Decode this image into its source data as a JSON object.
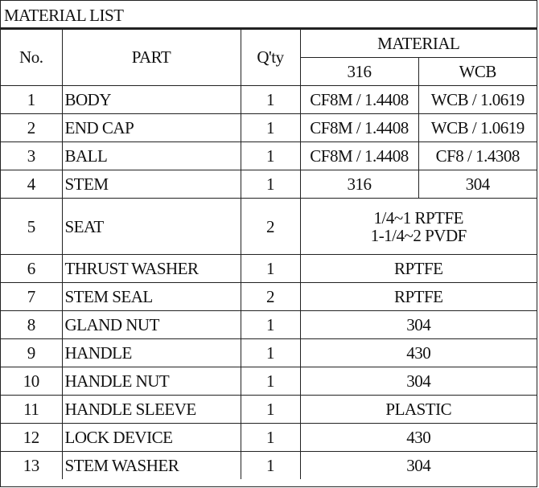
{
  "title": "MATERIAL LIST",
  "headers": {
    "no": "No.",
    "part": "PART",
    "qty": "Q'ty",
    "material": "MATERIAL",
    "m316": "316",
    "wcb": "WCB"
  },
  "rows": [
    {
      "no": "1",
      "part": "BODY",
      "qty": "1",
      "m316": "CF8M / 1.4408",
      "wcb": "WCB / 1.0619"
    },
    {
      "no": "2",
      "part": "END CAP",
      "qty": "1",
      "m316": "CF8M / 1.4408",
      "wcb": "WCB / 1.0619"
    },
    {
      "no": "3",
      "part": "BALL",
      "qty": "1",
      "m316": "CF8M / 1.4408",
      "wcb": "CF8 / 1.4308"
    },
    {
      "no": "4",
      "part": "STEM",
      "qty": "1",
      "m316": "316",
      "wcb": "304"
    },
    {
      "no": "5",
      "part": "SEAT",
      "qty": "2",
      "material_line1": "1/4~1 RPTFE",
      "material_line2": "1-1/4~2 PVDF"
    },
    {
      "no": "6",
      "part": "THRUST WASHER",
      "qty": "1",
      "material": "RPTFE"
    },
    {
      "no": "7",
      "part": "STEM SEAL",
      "qty": "2",
      "material": "RPTFE"
    },
    {
      "no": "8",
      "part": "GLAND NUT",
      "qty": "1",
      "material": "304"
    },
    {
      "no": "9",
      "part": "HANDLE",
      "qty": "1",
      "material": "430"
    },
    {
      "no": "10",
      "part": "HANDLE NUT",
      "qty": "1",
      "material": "304"
    },
    {
      "no": "11",
      "part": "HANDLE SLEEVE",
      "qty": "1",
      "material": "PLASTIC"
    },
    {
      "no": "12",
      "part": "LOCK DEVICE",
      "qty": "1",
      "material": "430"
    },
    {
      "no": "13",
      "part": "STEM WASHER",
      "qty": "1",
      "material": "304"
    }
  ]
}
